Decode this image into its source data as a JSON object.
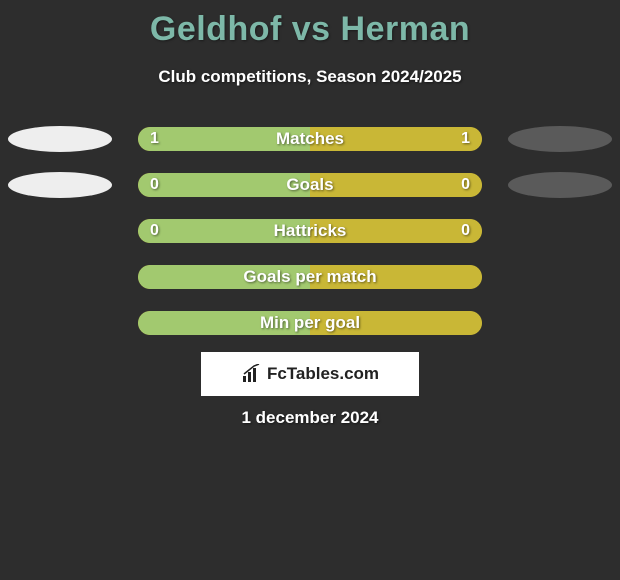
{
  "title": "Geldhof vs Herman",
  "subtitle": "Club competitions, Season 2024/2025",
  "date": "1 december 2024",
  "logo_text": "FcTables.com",
  "colors": {
    "background": "#2d2d2d",
    "title_color": "#7db8a8",
    "text_color": "#ffffff",
    "left_ellipse": "#eeeeee",
    "right_ellipse": "#5a5a5a",
    "track_bg": "#c9b736",
    "left_fill": "#a2c96f",
    "right_fill": "#c9b736"
  },
  "rows": [
    {
      "label": "Matches",
      "left_value": "1",
      "right_value": "1",
      "left_pct": 50,
      "right_pct": 50,
      "show_ellipses": true
    },
    {
      "label": "Goals",
      "left_value": "0",
      "right_value": "0",
      "left_pct": 50,
      "right_pct": 50,
      "show_ellipses": true
    },
    {
      "label": "Hattricks",
      "left_value": "0",
      "right_value": "0",
      "left_pct": 50,
      "right_pct": 50,
      "show_ellipses": false
    },
    {
      "label": "Goals per match",
      "left_value": "",
      "right_value": "",
      "left_pct": 50,
      "right_pct": 50,
      "show_ellipses": false
    },
    {
      "label": "Min per goal",
      "left_value": "",
      "right_value": "",
      "left_pct": 50,
      "right_pct": 50,
      "show_ellipses": false
    }
  ]
}
